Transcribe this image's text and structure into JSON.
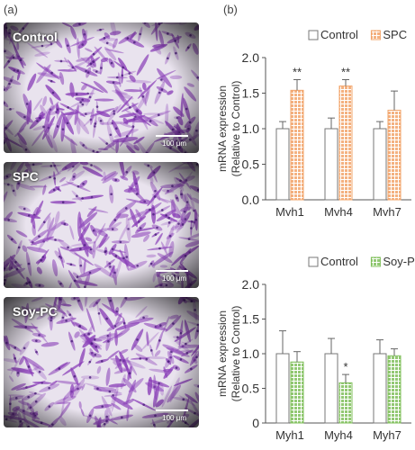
{
  "panel_a_label": "(a)",
  "panel_b_label": "(b)",
  "micrographs": [
    {
      "label": "Control",
      "scale": "100 μm"
    },
    {
      "label": "SPC",
      "scale": "100 μm"
    },
    {
      "label": "Soy-PC",
      "scale": "100 μm"
    }
  ],
  "colors": {
    "stain": "#8a3fb8",
    "control_bar": "#ffffff",
    "spc_bar": "#f2a46a",
    "soypc_bar": "#7fbf5a"
  },
  "chart_data": [
    {
      "type": "bar",
      "categories": [
        "Myh1",
        "Myh4",
        "Myh7"
      ],
      "series": [
        {
          "name": "Control",
          "values": [
            1.0,
            1.0,
            1.0
          ],
          "errors": [
            0.1,
            0.15,
            0.1
          ]
        },
        {
          "name": "SPC",
          "values": [
            1.54,
            1.6,
            1.26
          ],
          "errors": [
            0.15,
            0.09,
            0.27
          ]
        }
      ],
      "annotations": [
        "**",
        "**",
        ""
      ],
      "ylabel": "mRNA expression\n(Relative to Control)",
      "ylim": [
        0,
        2.0
      ],
      "yticks": [
        "0.0",
        "0.5",
        "1.0",
        "1.5",
        "2.0"
      ],
      "legend": "top"
    },
    {
      "type": "bar",
      "categories": [
        "Myh1",
        "Myh4",
        "Myh7"
      ],
      "series": [
        {
          "name": "Control",
          "values": [
            1.0,
            1.0,
            1.0
          ],
          "errors": [
            0.33,
            0.22,
            0.2
          ]
        },
        {
          "name": "Soy-PC",
          "values": [
            0.88,
            0.58,
            0.97
          ],
          "errors": [
            0.15,
            0.12,
            0.1
          ]
        }
      ],
      "annotations": [
        "",
        "*",
        ""
      ],
      "ylabel": "mRNA expression\n(Relative to Control)",
      "ylim": [
        0,
        2.0
      ],
      "yticks": [
        "0",
        "0.5",
        "1.0",
        "1.5",
        "2.0"
      ],
      "legend": "top"
    }
  ]
}
